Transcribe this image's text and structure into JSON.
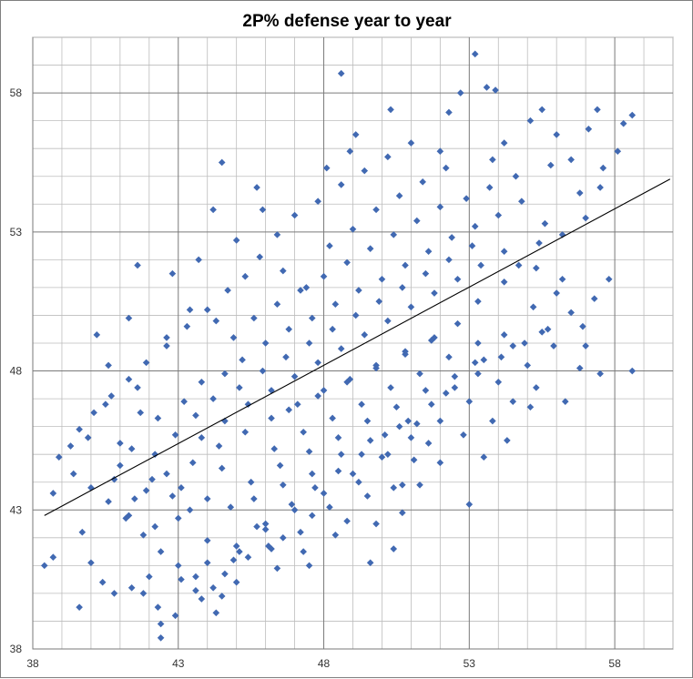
{
  "chart_data": {
    "type": "scatter",
    "title": "2P% defense year to year",
    "xlabel": "",
    "ylabel": "",
    "xlim": [
      38,
      60
    ],
    "ylim": [
      38,
      60
    ],
    "x_ticks": [
      "38",
      "43",
      "48",
      "53",
      "58"
    ],
    "y_ticks": [
      "38",
      "43",
      "48",
      "53",
      "58"
    ],
    "grid": true,
    "legend": "none",
    "marker": "diamond",
    "marker_color": "#4169b2",
    "trendline": {
      "type": "linear",
      "color": "#000000",
      "points": [
        [
          38.4,
          42.8
        ],
        [
          59.9,
          54.9
        ]
      ]
    },
    "series": [
      {
        "values": [
          [
            38.7,
            43.6
          ],
          [
            38.4,
            41.0
          ],
          [
            38.7,
            41.3
          ],
          [
            39.6,
            39.5
          ],
          [
            39.9,
            45.6
          ],
          [
            39.7,
            42.2
          ],
          [
            40.2,
            49.3
          ],
          [
            40.0,
            41.1
          ],
          [
            40.6,
            48.2
          ],
          [
            40.4,
            40.4
          ],
          [
            41.0,
            44.6
          ],
          [
            41.3,
            42.8
          ],
          [
            41.3,
            49.9
          ],
          [
            41.6,
            51.8
          ],
          [
            41.8,
            40.0
          ],
          [
            42.2,
            42.4
          ],
          [
            42.3,
            39.5
          ],
          [
            42.4,
            38.4
          ],
          [
            42.4,
            38.9
          ],
          [
            42.6,
            49.2
          ],
          [
            42.8,
            51.5
          ],
          [
            43.4,
            50.2
          ],
          [
            43.7,
            52.0
          ],
          [
            44.2,
            53.8
          ],
          [
            44.3,
            49.8
          ],
          [
            43.6,
            40.1
          ],
          [
            44.5,
            55.5
          ],
          [
            44.5,
            39.9
          ],
          [
            44.9,
            41.2
          ],
          [
            45.9,
            53.8
          ],
          [
            45.7,
            54.6
          ],
          [
            46.2,
            41.6
          ],
          [
            47.5,
            41.0
          ],
          [
            48.6,
            58.7
          ],
          [
            49.1,
            56.5
          ],
          [
            49.6,
            41.1
          ],
          [
            50.3,
            57.4
          ],
          [
            50.4,
            41.6
          ],
          [
            50.7,
            43.9
          ],
          [
            52.0,
            55.9
          ],
          [
            52.3,
            57.3
          ],
          [
            52.7,
            58.0
          ],
          [
            53.2,
            59.4
          ],
          [
            53.6,
            58.2
          ],
          [
            53.9,
            58.1
          ],
          [
            54.2,
            56.2
          ],
          [
            55.1,
            57.0
          ],
          [
            55.5,
            57.4
          ],
          [
            56.0,
            56.5
          ],
          [
            56.5,
            55.6
          ],
          [
            57.1,
            56.7
          ],
          [
            57.4,
            57.4
          ],
          [
            58.3,
            56.9
          ],
          [
            58.6,
            57.2
          ],
          [
            58.1,
            55.9
          ],
          [
            57.5,
            54.6
          ],
          [
            58.6,
            48.0
          ],
          [
            57.5,
            47.9
          ],
          [
            56.8,
            48.1
          ],
          [
            56.3,
            46.9
          ],
          [
            55.1,
            46.7
          ],
          [
            54.3,
            45.5
          ],
          [
            53.5,
            44.9
          ],
          [
            53.0,
            43.2
          ],
          [
            51.6,
            45.4
          ],
          [
            51.1,
            44.8
          ],
          [
            50.4,
            43.8
          ],
          [
            49.5,
            43.5
          ],
          [
            48.8,
            42.6
          ],
          [
            47.6,
            42.8
          ],
          [
            46.6,
            42.0
          ],
          [
            45.7,
            42.4
          ],
          [
            44.8,
            43.1
          ],
          [
            44.0,
            43.4
          ],
          [
            43.1,
            43.8
          ],
          [
            42.2,
            45.0
          ],
          [
            41.7,
            46.5
          ],
          [
            41.0,
            45.4
          ],
          [
            40.5,
            46.8
          ],
          [
            41.6,
            47.4
          ],
          [
            42.3,
            46.3
          ],
          [
            43.2,
            46.9
          ],
          [
            43.8,
            47.6
          ],
          [
            44.6,
            47.9
          ],
          [
            45.2,
            48.4
          ],
          [
            46.0,
            49.0
          ],
          [
            46.8,
            49.5
          ],
          [
            47.6,
            49.9
          ],
          [
            48.4,
            50.4
          ],
          [
            49.2,
            50.9
          ],
          [
            50.0,
            51.3
          ],
          [
            50.8,
            51.8
          ],
          [
            51.6,
            52.3
          ],
          [
            52.4,
            52.8
          ],
          [
            53.2,
            53.2
          ],
          [
            54.0,
            53.6
          ],
          [
            54.8,
            54.1
          ],
          [
            55.6,
            53.3
          ],
          [
            56.2,
            52.9
          ],
          [
            57.0,
            53.5
          ],
          [
            55.3,
            51.7
          ],
          [
            54.2,
            51.2
          ],
          [
            53.3,
            50.5
          ],
          [
            52.6,
            49.7
          ],
          [
            51.7,
            49.1
          ],
          [
            50.8,
            48.6
          ],
          [
            49.8,
            48.2
          ],
          [
            48.9,
            47.7
          ],
          [
            48.0,
            47.3
          ],
          [
            47.1,
            46.8
          ],
          [
            46.2,
            46.3
          ],
          [
            45.3,
            45.8
          ],
          [
            44.4,
            45.3
          ],
          [
            43.5,
            44.7
          ],
          [
            42.6,
            44.3
          ],
          [
            41.9,
            43.7
          ],
          [
            43.0,
            42.7
          ],
          [
            44.0,
            41.9
          ],
          [
            45.1,
            41.5
          ],
          [
            46.1,
            41.7
          ],
          [
            47.2,
            42.2
          ],
          [
            48.2,
            43.1
          ],
          [
            49.2,
            44.0
          ],
          [
            50.2,
            45.0
          ],
          [
            51.2,
            46.1
          ],
          [
            52.2,
            47.2
          ],
          [
            53.2,
            48.3
          ],
          [
            54.2,
            49.3
          ],
          [
            55.2,
            50.3
          ],
          [
            56.2,
            51.3
          ],
          [
            45.0,
            52.7
          ],
          [
            45.8,
            52.1
          ],
          [
            46.6,
            51.6
          ],
          [
            47.4,
            51.0
          ],
          [
            48.2,
            52.5
          ],
          [
            49.0,
            53.1
          ],
          [
            49.8,
            53.8
          ],
          [
            50.6,
            54.3
          ],
          [
            51.4,
            54.8
          ],
          [
            52.2,
            55.3
          ],
          [
            47.0,
            53.6
          ],
          [
            47.8,
            54.1
          ],
          [
            48.6,
            54.7
          ],
          [
            49.4,
            55.2
          ],
          [
            50.2,
            55.7
          ],
          [
            51.0,
            56.2
          ],
          [
            48.1,
            55.3
          ],
          [
            48.9,
            55.9
          ],
          [
            46.4,
            52.9
          ],
          [
            45.3,
            51.4
          ],
          [
            44.7,
            50.9
          ],
          [
            44.0,
            50.2
          ],
          [
            43.3,
            49.6
          ],
          [
            42.6,
            48.9
          ],
          [
            41.9,
            48.3
          ],
          [
            41.3,
            47.7
          ],
          [
            40.7,
            47.1
          ],
          [
            40.1,
            46.5
          ],
          [
            39.6,
            45.9
          ],
          [
            39.3,
            45.3
          ],
          [
            38.9,
            44.9
          ],
          [
            39.4,
            44.3
          ],
          [
            40.0,
            43.8
          ],
          [
            40.6,
            43.3
          ],
          [
            41.2,
            42.7
          ],
          [
            41.8,
            42.1
          ],
          [
            42.4,
            41.5
          ],
          [
            43.0,
            41.0
          ],
          [
            43.6,
            40.6
          ],
          [
            44.2,
            40.2
          ],
          [
            42.0,
            40.6
          ],
          [
            41.4,
            40.2
          ],
          [
            40.8,
            40.0
          ],
          [
            42.9,
            39.2
          ],
          [
            43.8,
            39.8
          ],
          [
            44.6,
            40.7
          ],
          [
            45.4,
            41.3
          ],
          [
            46.0,
            42.5
          ],
          [
            46.9,
            43.2
          ],
          [
            47.7,
            43.8
          ],
          [
            48.5,
            44.4
          ],
          [
            49.3,
            45.0
          ],
          [
            50.1,
            45.7
          ],
          [
            50.9,
            46.2
          ],
          [
            51.7,
            46.8
          ],
          [
            52.5,
            47.4
          ],
          [
            53.3,
            47.9
          ],
          [
            54.1,
            48.5
          ],
          [
            54.9,
            49.0
          ],
          [
            55.7,
            49.5
          ],
          [
            56.5,
            50.1
          ],
          [
            57.3,
            50.6
          ],
          [
            56.9,
            49.6
          ],
          [
            55.9,
            48.9
          ],
          [
            55.0,
            48.2
          ],
          [
            54.0,
            47.6
          ],
          [
            53.0,
            46.9
          ],
          [
            52.0,
            46.2
          ],
          [
            51.0,
            45.6
          ],
          [
            50.0,
            44.9
          ],
          [
            49.0,
            44.3
          ],
          [
            48.0,
            43.6
          ],
          [
            47.0,
            43.0
          ],
          [
            46.0,
            42.3
          ],
          [
            45.0,
            41.7
          ],
          [
            44.0,
            41.1
          ],
          [
            43.1,
            40.5
          ],
          [
            45.5,
            44.0
          ],
          [
            46.5,
            44.6
          ],
          [
            47.5,
            45.1
          ],
          [
            48.5,
            45.6
          ],
          [
            49.5,
            46.2
          ],
          [
            50.5,
            46.7
          ],
          [
            51.5,
            47.3
          ],
          [
            52.5,
            47.8
          ],
          [
            53.5,
            48.4
          ],
          [
            54.5,
            48.9
          ],
          [
            55.5,
            49.4
          ],
          [
            44.5,
            44.5
          ],
          [
            43.8,
            45.6
          ],
          [
            44.6,
            46.2
          ],
          [
            45.4,
            46.8
          ],
          [
            46.2,
            47.3
          ],
          [
            47.0,
            47.8
          ],
          [
            47.8,
            48.3
          ],
          [
            48.6,
            48.8
          ],
          [
            49.4,
            49.3
          ],
          [
            50.2,
            49.8
          ],
          [
            51.0,
            50.3
          ],
          [
            51.8,
            50.8
          ],
          [
            52.6,
            51.3
          ],
          [
            53.4,
            51.8
          ],
          [
            54.2,
            52.3
          ],
          [
            45.1,
            47.4
          ],
          [
            45.9,
            48.0
          ],
          [
            46.7,
            48.5
          ],
          [
            47.5,
            49.0
          ],
          [
            48.3,
            49.5
          ],
          [
            49.1,
            50.0
          ],
          [
            49.9,
            50.5
          ],
          [
            50.7,
            51.0
          ],
          [
            51.5,
            51.5
          ],
          [
            52.3,
            52.0
          ],
          [
            53.1,
            52.5
          ],
          [
            44.2,
            47.0
          ],
          [
            44.9,
            49.2
          ],
          [
            45.6,
            49.9
          ],
          [
            46.4,
            50.4
          ],
          [
            47.2,
            50.9
          ],
          [
            48.0,
            51.4
          ],
          [
            48.8,
            51.9
          ],
          [
            49.6,
            52.4
          ],
          [
            50.4,
            52.9
          ],
          [
            51.2,
            53.4
          ],
          [
            52.0,
            53.9
          ],
          [
            46.3,
            45.2
          ],
          [
            47.3,
            45.8
          ],
          [
            48.3,
            46.3
          ],
          [
            49.3,
            46.8
          ],
          [
            50.3,
            47.4
          ],
          [
            51.3,
            47.9
          ],
          [
            52.3,
            48.5
          ],
          [
            53.3,
            49.0
          ],
          [
            47.8,
            47.1
          ],
          [
            48.8,
            47.6
          ],
          [
            49.8,
            48.1
          ],
          [
            50.8,
            48.7
          ],
          [
            51.8,
            49.2
          ],
          [
            46.8,
            46.6
          ],
          [
            47.6,
            44.3
          ],
          [
            48.6,
            45.0
          ],
          [
            49.6,
            45.5
          ],
          [
            50.6,
            46.0
          ],
          [
            45.6,
            43.4
          ],
          [
            46.6,
            43.9
          ],
          [
            43.4,
            43.0
          ],
          [
            42.8,
            43.5
          ],
          [
            42.1,
            44.1
          ],
          [
            42.9,
            45.7
          ],
          [
            43.6,
            46.4
          ],
          [
            41.4,
            45.2
          ],
          [
            40.8,
            44.1
          ],
          [
            41.5,
            43.4
          ],
          [
            56.8,
            54.4
          ],
          [
            57.6,
            55.3
          ],
          [
            55.8,
            55.4
          ],
          [
            54.6,
            55.0
          ],
          [
            53.7,
            54.6
          ],
          [
            52.9,
            54.2
          ],
          [
            53.8,
            55.6
          ],
          [
            55.4,
            52.6
          ],
          [
            54.7,
            51.8
          ],
          [
            56.0,
            50.8
          ],
          [
            57.8,
            51.3
          ],
          [
            57.0,
            48.9
          ],
          [
            55.3,
            47.4
          ],
          [
            54.5,
            46.9
          ],
          [
            53.8,
            46.2
          ],
          [
            52.8,
            45.7
          ],
          [
            52.0,
            44.7
          ],
          [
            51.3,
            43.9
          ],
          [
            50.7,
            42.9
          ],
          [
            49.8,
            42.5
          ],
          [
            48.4,
            42.1
          ],
          [
            47.3,
            41.5
          ],
          [
            46.4,
            40.9
          ],
          [
            45.0,
            40.4
          ],
          [
            44.3,
            39.3
          ]
        ]
      }
    ]
  }
}
